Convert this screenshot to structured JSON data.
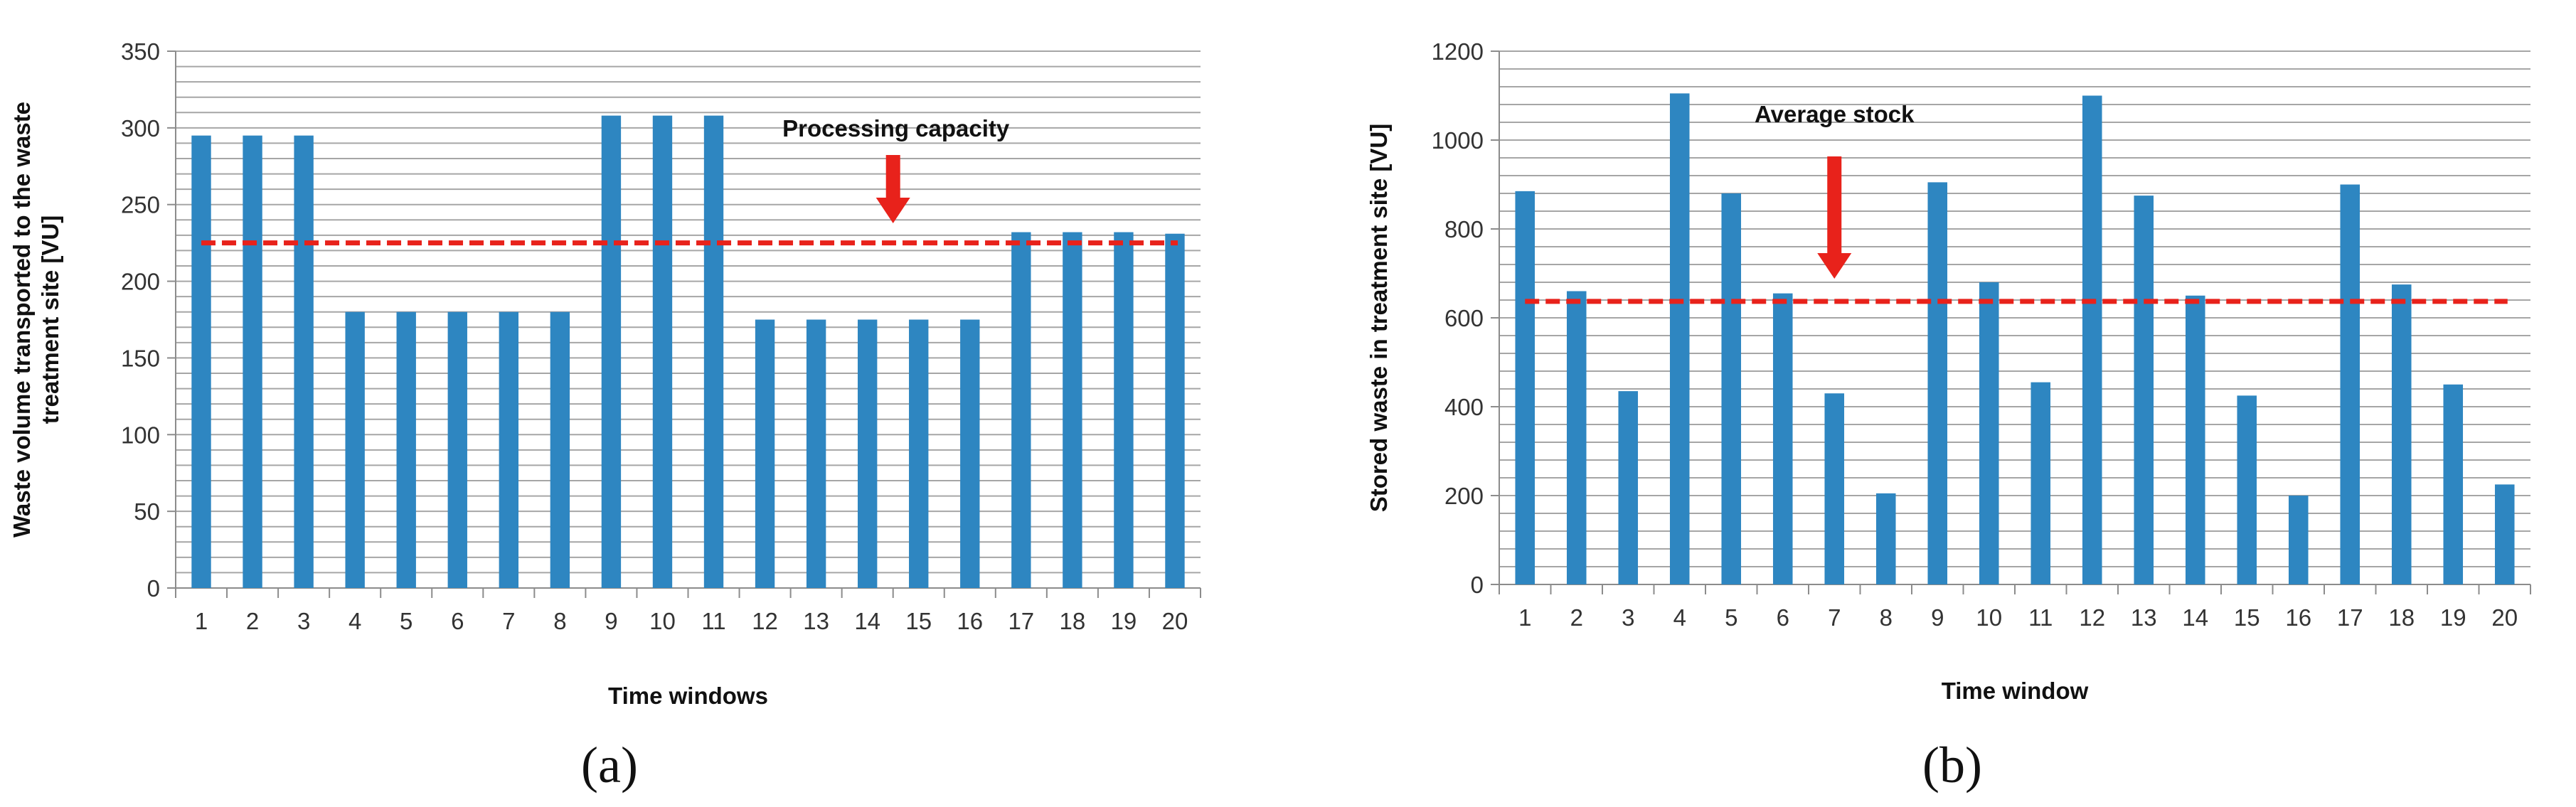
{
  "chart_data": [
    {
      "type": "bar",
      "panel_label": "(a)",
      "categories": [
        "1",
        "2",
        "3",
        "4",
        "5",
        "6",
        "7",
        "8",
        "9",
        "10",
        "11",
        "12",
        "13",
        "14",
        "15",
        "16",
        "17",
        "18",
        "19",
        "20"
      ],
      "values": [
        295,
        295,
        295,
        180,
        180,
        180,
        180,
        180,
        308,
        308,
        308,
        175,
        175,
        175,
        175,
        175,
        232,
        232,
        232,
        231
      ],
      "xlabel": "Time windows",
      "ylabel_lines": [
        "Waste volume transported to the waste",
        "treatment site [VU]"
      ],
      "ylim": [
        0,
        350
      ],
      "yticks": [
        0,
        50,
        100,
        150,
        200,
        250,
        300,
        350
      ],
      "grid_step": 10,
      "grid": true,
      "bar_color": "#2E86C1",
      "reference_line": {
        "value": 225,
        "color": "#E8221B",
        "style": "dashed"
      },
      "annotation": {
        "text": "Processing capacity",
        "arrow_color": "#E8221B",
        "arrow_category": "14"
      }
    },
    {
      "type": "bar",
      "panel_label": "(b)",
      "categories": [
        "1",
        "2",
        "3",
        "4",
        "5",
        "6",
        "7",
        "8",
        "9",
        "10",
        "11",
        "12",
        "13",
        "14",
        "15",
        "16",
        "17",
        "18",
        "19",
        "20"
      ],
      "values": [
        885,
        660,
        435,
        1105,
        880,
        655,
        430,
        205,
        905,
        680,
        455,
        1100,
        875,
        650,
        425,
        200,
        900,
        675,
        450,
        225
      ],
      "xlabel": "Time window",
      "ylabel_lines": [
        "Stored waste in treatment site [VU]"
      ],
      "ylim": [
        0,
        1200
      ],
      "yticks": [
        0,
        200,
        400,
        600,
        800,
        1000,
        1200
      ],
      "grid_step": 40,
      "grid": true,
      "bar_color": "#2E86C1",
      "reference_line": {
        "value": 637,
        "color": "#E8221B",
        "style": "dashed"
      },
      "annotation": {
        "text": "Average stock",
        "arrow_color": "#E8221B",
        "arrow_category": "7"
      }
    }
  ]
}
